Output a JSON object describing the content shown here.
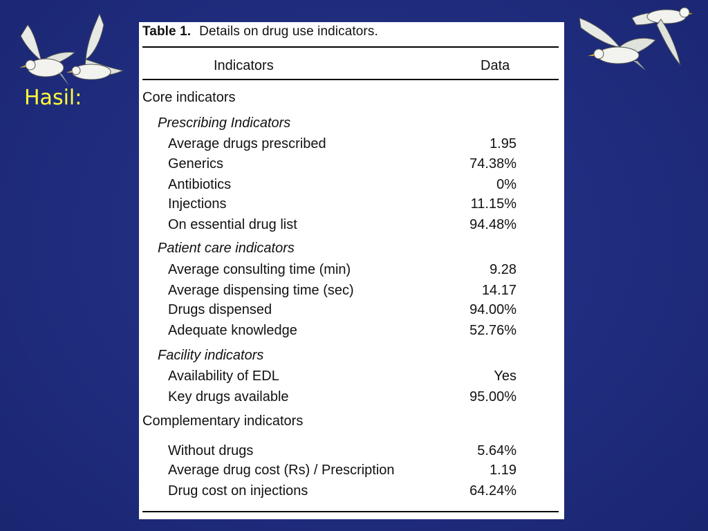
{
  "slide": {
    "heading": "Hasil:",
    "colors": {
      "background": "#1f2c7d",
      "heading": "#ffff3a",
      "panel": "#ffffff"
    },
    "decorations": [
      "seagull-icon",
      "seagull-icon",
      "seagull-icon",
      "seagull-icon"
    ]
  },
  "table": {
    "title_lead": "Table 1.",
    "title_text": "Details on drug use indicators.",
    "headers": {
      "indicators": "Indicators",
      "data": "Data"
    },
    "rows": [
      {
        "label": "Core indicators",
        "value": ""
      },
      {
        "label": "Prescribing Indicators",
        "value": ""
      },
      {
        "label": "Average drugs prescribed",
        "value": "1.95"
      },
      {
        "label": "Generics",
        "value": "74.38%"
      },
      {
        "label": "Antibiotics",
        "value": "0%"
      },
      {
        "label": "Injections",
        "value": "11.15%"
      },
      {
        "label": "On essential drug list",
        "value": "94.48%"
      },
      {
        "label": "Patient care indicators",
        "value": ""
      },
      {
        "label": "Average consulting time (min)",
        "value": "9.28"
      },
      {
        "label": "Average dispensing time (sec)",
        "value": "14.17"
      },
      {
        "label": "Drugs dispensed",
        "value": "94.00%"
      },
      {
        "label": "Adequate knowledge",
        "value": "52.76%"
      },
      {
        "label": "Facility indicators",
        "value": ""
      },
      {
        "label": "Availability of EDL",
        "value": "Yes"
      },
      {
        "label": "Key drugs available",
        "value": "95.00%"
      },
      {
        "label": "Complementary indicators",
        "value": ""
      },
      {
        "label": "Without drugs",
        "value": "5.64%"
      },
      {
        "label": "Average drug cost (Rs) / Prescription",
        "value": "1.19"
      },
      {
        "label": "Drug cost on injections",
        "value": "64.24%"
      }
    ]
  }
}
